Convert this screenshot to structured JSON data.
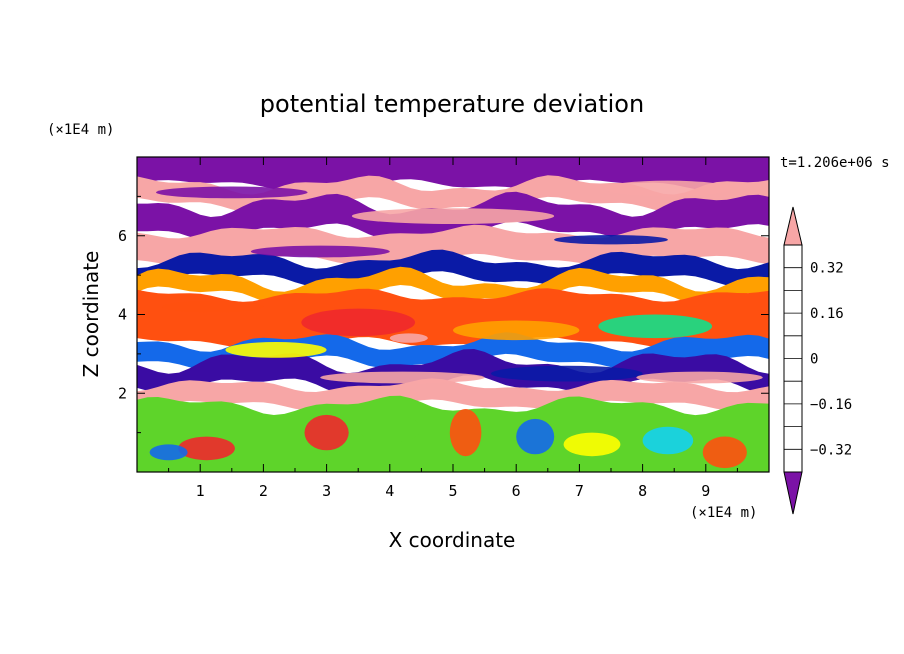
{
  "chart_data": {
    "type": "heatmap",
    "title": "potential temperature deviation",
    "xlabel": "X coordinate",
    "ylabel": "Z coordinate",
    "x_unit": "(×1E4 m)",
    "y_unit": "(×1E4 m)",
    "time_label": "t=1.206e+06 s",
    "xlim": [
      0,
      10
    ],
    "ylim": [
      0,
      8
    ],
    "x_ticks": [
      1,
      2,
      3,
      4,
      5,
      6,
      7,
      8,
      9
    ],
    "y_ticks": [
      2,
      4,
      6
    ],
    "colorbar": {
      "levels": [
        -0.4,
        -0.32,
        -0.24,
        -0.16,
        -0.08,
        0,
        0.08,
        0.16,
        0.24,
        0.32,
        0.4
      ],
      "tick_labels": [
        "0.32",
        "0.16",
        "0",
        "−0.16",
        "−0.32"
      ],
      "tick_values": [
        0.32,
        0.16,
        0,
        -0.16,
        -0.32
      ],
      "colors": [
        "#7b12a6",
        "#3a0ca3",
        "#0a1aa6",
        "#1469ea",
        "#14d2ee",
        "#12e08a",
        "#5ed42a",
        "#ffff00",
        "#ffa000",
        "#ff5010",
        "#f0282c",
        "#f7a6a6"
      ],
      "extend": "both"
    },
    "bands": [
      {
        "z": [
          7.3,
          8.0
        ],
        "value": -0.45
      },
      {
        "z": [
          6.8,
          7.3
        ],
        "value": 0.45
      },
      {
        "z": [
          6.1,
          6.8
        ],
        "value": -0.45
      },
      {
        "z": [
          5.4,
          6.1
        ],
        "value": 0.45
      },
      {
        "z": [
          4.9,
          5.4
        ],
        "value": -0.3
      },
      {
        "z": [
          4.5,
          4.9
        ],
        "value": 0.2
      },
      {
        "z": [
          3.3,
          4.5
        ],
        "value": 0.28
      },
      {
        "z": [
          2.8,
          3.3
        ],
        "value": -0.2
      },
      {
        "z": [
          2.2,
          2.8
        ],
        "value": -0.4
      },
      {
        "z": [
          1.7,
          2.2
        ],
        "value": 0.45
      },
      {
        "z": [
          0.0,
          1.7
        ],
        "value": 0.0
      }
    ]
  }
}
